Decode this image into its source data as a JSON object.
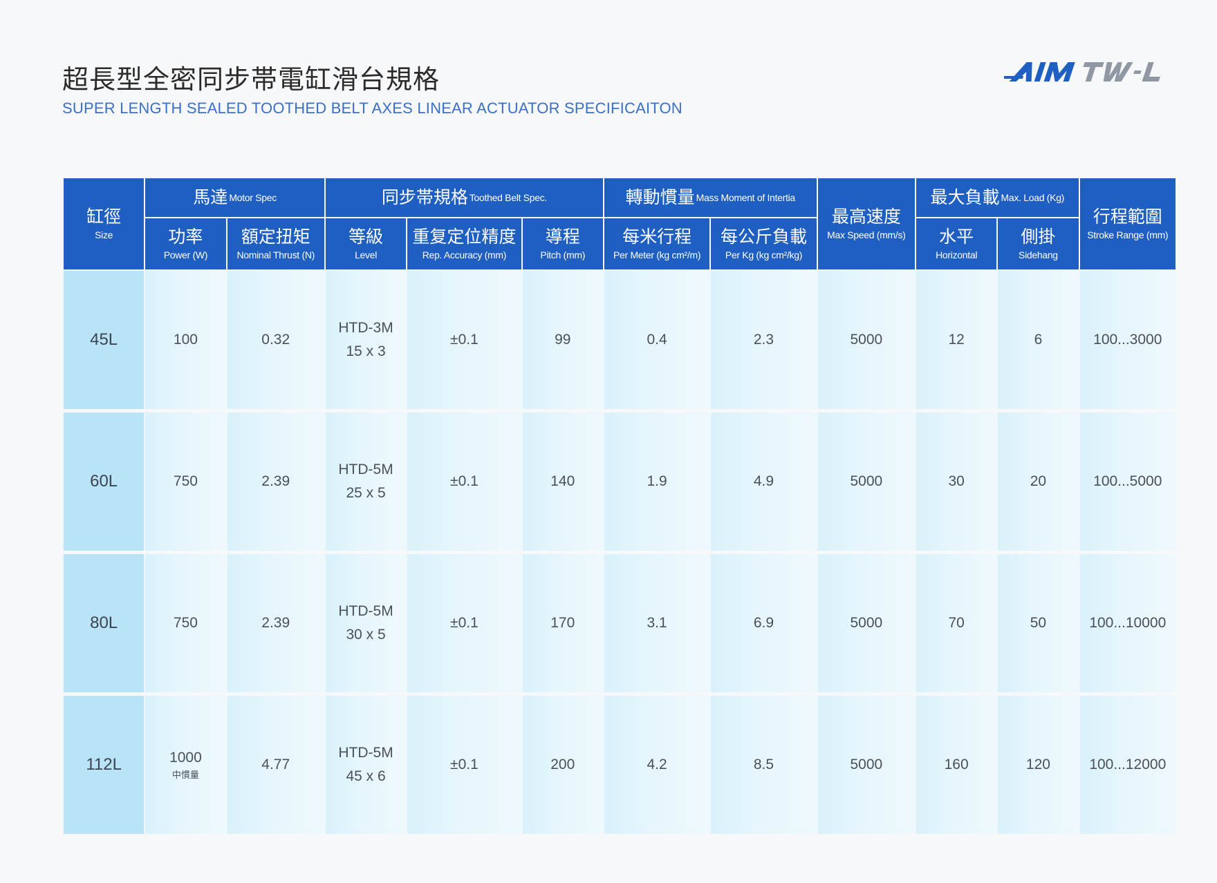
{
  "header": {
    "title_cn": "超長型全密同步帯電缸滑台規格",
    "title_en": "SUPER LENGTH SEALED TOOTHED BELT AXES LINEAR ACTUATOR SPECIFICAITON",
    "logo_text": "AIMTW-L"
  },
  "table": {
    "groups": {
      "size": {
        "cn": "缸徑",
        "en": "Size"
      },
      "motor": {
        "cn": "馬達",
        "en": "Motor Spec"
      },
      "belt": {
        "cn": "同步帯規格",
        "en": "Toothed Belt Spec."
      },
      "inertia": {
        "cn": "轉動慣量",
        "en": "Mass Moment of Intertia"
      },
      "speed": {
        "cn": "最高速度",
        "en": "Max Speed (mm/s)"
      },
      "load": {
        "cn": "最大負載",
        "en": "Max. Load (Kg)"
      },
      "stroke": {
        "cn": "行程範圍",
        "en": "Stroke Range (mm)"
      }
    },
    "subcolumns": {
      "power": {
        "cn": "功率",
        "en": "Power (W)"
      },
      "thrust": {
        "cn": "額定扭矩",
        "en": "Nominal Thrust (N)"
      },
      "level": {
        "cn": "等級",
        "en": "Level"
      },
      "accuracy": {
        "cn": "重复定位精度",
        "en": "Rep. Accuracy (mm)"
      },
      "pitch": {
        "cn": "導程",
        "en": "Pitch (mm)"
      },
      "per_meter": {
        "cn": "每米行程",
        "en": "Per Meter (kg cm²/m)"
      },
      "per_kg": {
        "cn": "每公斤負載",
        "en": "Per Kg (kg cm²/kg)"
      },
      "horizontal": {
        "cn": "水平",
        "en": "Horizontal"
      },
      "sidehang": {
        "cn": "側掛",
        "en": "Sidehang"
      }
    },
    "rows": [
      {
        "size": "45L",
        "power": "100",
        "power_note": "",
        "thrust": "0.32",
        "level_1": "HTD-3M",
        "level_2": "15 x 3",
        "accuracy": "±0.1",
        "pitch": "99",
        "per_meter": "0.4",
        "per_kg": "2.3",
        "speed": "5000",
        "horizontal": "12",
        "sidehang": "6",
        "stroke": "100...3000"
      },
      {
        "size": "60L",
        "power": "750",
        "power_note": "",
        "thrust": "2.39",
        "level_1": "HTD-5M",
        "level_2": "25 x 5",
        "accuracy": "±0.1",
        "pitch": "140",
        "per_meter": "1.9",
        "per_kg": "4.9",
        "speed": "5000",
        "horizontal": "30",
        "sidehang": "20",
        "stroke": "100...5000"
      },
      {
        "size": "80L",
        "power": "750",
        "power_note": "",
        "thrust": "2.39",
        "level_1": "HTD-5M",
        "level_2": "30 x 5",
        "accuracy": "±0.1",
        "pitch": "170",
        "per_meter": "3.1",
        "per_kg": "6.9",
        "speed": "5000",
        "horizontal": "70",
        "sidehang": "50",
        "stroke": "100...10000"
      },
      {
        "size": "112L",
        "power": "1000",
        "power_note": "中慣量",
        "thrust": "4.77",
        "level_1": "HTD-5M",
        "level_2": "45 x 6",
        "accuracy": "±0.1",
        "pitch": "200",
        "per_meter": "4.2",
        "per_kg": "8.5",
        "speed": "5000",
        "horizontal": "160",
        "sidehang": "120",
        "stroke": "100...12000"
      }
    ]
  },
  "colors": {
    "header_blue": "#1f5fc1",
    "subtitle_blue": "#3b6fc4",
    "size_cell": "#b9e4f7",
    "row_bg": "#e6f6fc"
  }
}
